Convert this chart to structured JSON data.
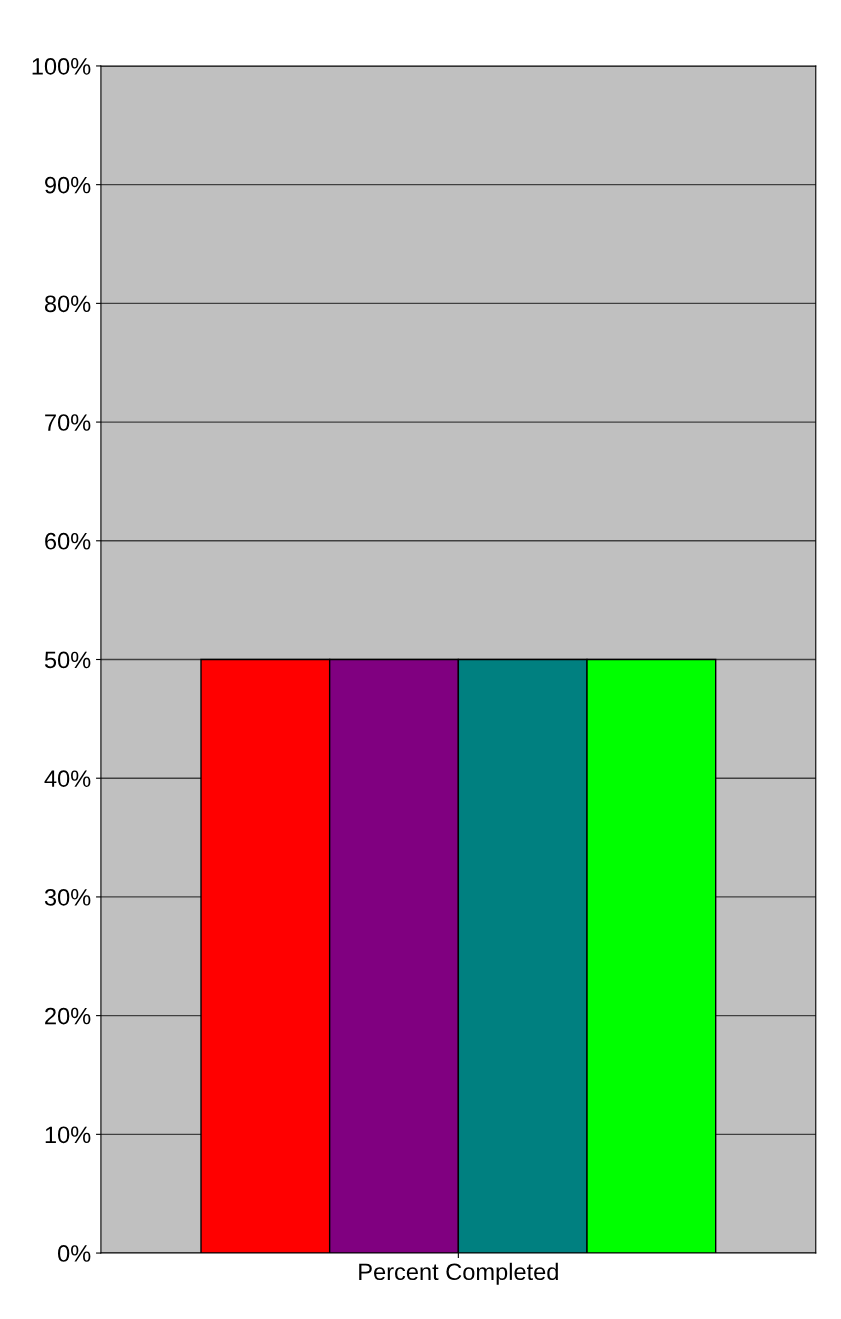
{
  "chart_data": {
    "type": "bar",
    "categories": [
      "Percent Completed"
    ],
    "series": [
      {
        "color": "#ff0000",
        "values": [
          50
        ]
      },
      {
        "color": "#800080",
        "values": [
          50
        ]
      },
      {
        "color": "#008080",
        "values": [
          50
        ]
      },
      {
        "color": "#00ff00",
        "values": [
          50
        ]
      }
    ],
    "ylim": [
      0,
      100
    ],
    "yticks": [
      {
        "value": 0,
        "label": "0%"
      },
      {
        "value": 10,
        "label": "10%"
      },
      {
        "value": 20,
        "label": "20%"
      },
      {
        "value": 30,
        "label": "30%"
      },
      {
        "value": 40,
        "label": "40%"
      },
      {
        "value": 50,
        "label": "50%"
      },
      {
        "value": 60,
        "label": "60%"
      },
      {
        "value": 70,
        "label": "70%"
      },
      {
        "value": 80,
        "label": "80%"
      },
      {
        "value": 90,
        "label": "90%"
      },
      {
        "value": 100,
        "label": "100%"
      }
    ],
    "grid": "y",
    "legend": false
  }
}
